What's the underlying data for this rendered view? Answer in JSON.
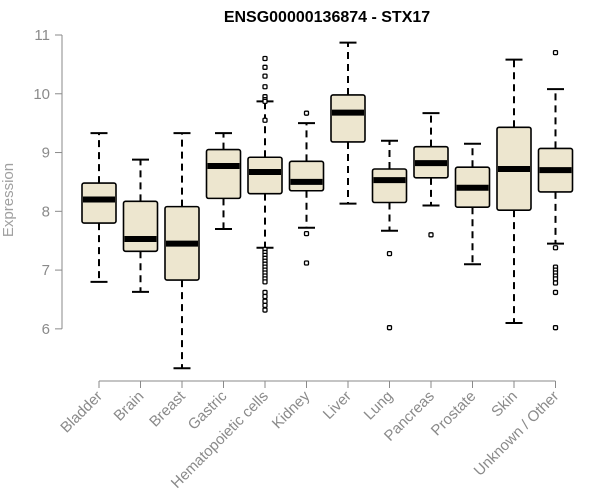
{
  "chart_data": {
    "type": "boxplot",
    "title": "ENSG00000136874 - STX17",
    "xlabel": "",
    "ylabel": "Expression",
    "ylim": [
      5.3,
      11.0
    ],
    "yticks": [
      6,
      7,
      8,
      9,
      10,
      11
    ],
    "grid": false,
    "box_fill": "#ede6cf",
    "box_stroke": "#000000",
    "median_color": "#000000",
    "tick_label_color": "#8a8a8a",
    "categories": [
      "Bladder",
      "Brain",
      "Breast",
      "Gastric",
      "Hematopoietic cells",
      "Kidney",
      "Liver",
      "Lung",
      "Pancreas",
      "Prostate",
      "Skin",
      "Unknown / Other"
    ],
    "boxes": [
      {
        "name": "Bladder",
        "min": 6.8,
        "q1": 7.8,
        "median": 8.2,
        "q3": 8.48,
        "max": 9.33,
        "outliers": []
      },
      {
        "name": "Brain",
        "min": 6.63,
        "q1": 7.32,
        "median": 7.53,
        "q3": 8.17,
        "max": 8.88,
        "outliers": []
      },
      {
        "name": "Breast",
        "min": 5.33,
        "q1": 6.83,
        "median": 7.45,
        "q3": 8.08,
        "max": 9.33,
        "outliers": []
      },
      {
        "name": "Gastric",
        "min": 7.7,
        "q1": 8.22,
        "median": 8.77,
        "q3": 9.05,
        "max": 9.33,
        "outliers": []
      },
      {
        "name": "Hematopoietic cells",
        "min": 7.38,
        "q1": 8.3,
        "median": 8.67,
        "q3": 8.92,
        "max": 9.87,
        "outliers": [
          10.6,
          10.45,
          10.3,
          10.12,
          9.95,
          9.9,
          9.87,
          9.55,
          7.35,
          7.3,
          7.25,
          7.2,
          7.15,
          7.1,
          7.05,
          7.0,
          6.95,
          6.9,
          6.85,
          6.8,
          6.62,
          6.55,
          6.47,
          6.4,
          6.32
        ]
      },
      {
        "name": "Kidney",
        "min": 7.72,
        "q1": 8.35,
        "median": 8.5,
        "q3": 8.85,
        "max": 9.5,
        "outliers": [
          9.67,
          7.62,
          7.12
        ]
      },
      {
        "name": "Liver",
        "min": 8.13,
        "q1": 9.18,
        "median": 9.68,
        "q3": 9.98,
        "max": 10.87,
        "outliers": []
      },
      {
        "name": "Lung",
        "min": 7.67,
        "q1": 8.15,
        "median": 8.53,
        "q3": 8.72,
        "max": 9.2,
        "outliers": [
          7.28,
          6.02
        ]
      },
      {
        "name": "Pancreas",
        "min": 8.1,
        "q1": 8.57,
        "median": 8.82,
        "q3": 9.1,
        "max": 9.67,
        "outliers": [
          7.6
        ]
      },
      {
        "name": "Prostate",
        "min": 7.1,
        "q1": 8.07,
        "median": 8.4,
        "q3": 8.75,
        "max": 9.15,
        "outliers": []
      },
      {
        "name": "Skin",
        "min": 6.1,
        "q1": 8.02,
        "median": 8.72,
        "q3": 9.43,
        "max": 10.58,
        "outliers": []
      },
      {
        "name": "Unknown / Other",
        "min": 7.45,
        "q1": 8.33,
        "median": 8.7,
        "q3": 9.07,
        "max": 10.08,
        "outliers": [
          10.7,
          7.38,
          7.05,
          7.0,
          6.95,
          6.9,
          6.85,
          6.78,
          6.62,
          6.02
        ]
      }
    ]
  }
}
